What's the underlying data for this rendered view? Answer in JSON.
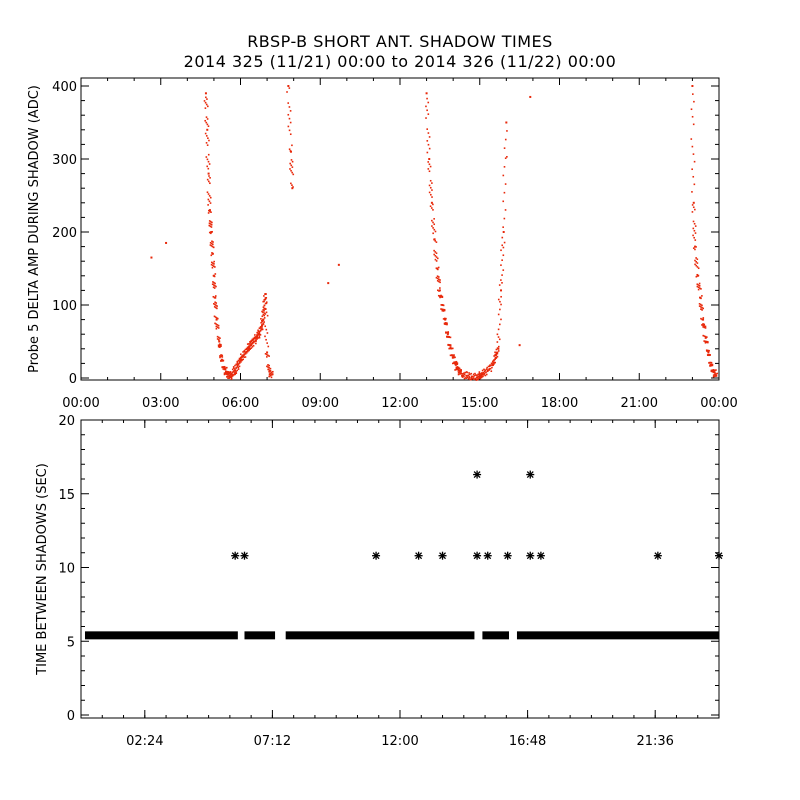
{
  "chart_data": [
    {
      "type": "scatter",
      "title": "RBSP-B SHORT ANT. SHADOW TIMES",
      "subtitle": "2014 325 (11/21) 00:00 to 2014 326 (11/22) 00:00",
      "ylabel": "Probe 5 DELTA AMP DURING SHADOW (ADC)",
      "xlabel": "",
      "xlim": [
        0,
        24
      ],
      "ylim": [
        0,
        400
      ],
      "x_tick_labels": [
        "00:00",
        "03:00",
        "06:00",
        "09:00",
        "12:00",
        "15:00",
        "18:00",
        "21:00",
        "00:00"
      ],
      "y_tick_labels": [
        "0",
        "100",
        "200",
        "300",
        "400"
      ],
      "x_unit": "hours",
      "color": "#e8290b",
      "series": [
        {
          "x": [
            2.65,
            3.2,
            4.7,
            4.75,
            4.8,
            4.85,
            4.9,
            4.95,
            5.0,
            5.05,
            5.1,
            5.2,
            5.3,
            5.4,
            5.5,
            5.6,
            5.7,
            5.8,
            5.9,
            6.0,
            6.1,
            6.2,
            6.3,
            6.4,
            6.5,
            6.6,
            6.7,
            6.8,
            6.85,
            6.9,
            6.95,
            7.0,
            7.1,
            7.2,
            7.8,
            7.9,
            7.95,
            9.3,
            9.7,
            13.0,
            13.1,
            13.2,
            13.3,
            13.4,
            13.5,
            13.6,
            13.7,
            13.8,
            13.9,
            14.0,
            14.1,
            14.2,
            14.3,
            14.5,
            14.7,
            14.9,
            15.0,
            15.1,
            15.3,
            15.5,
            15.6,
            15.7,
            15.8,
            15.9,
            16.0,
            16.5,
            16.9,
            23.0,
            23.05,
            23.1,
            23.2,
            23.3,
            23.4,
            23.5,
            23.6,
            23.7,
            23.8,
            23.9
          ],
          "y": [
            165,
            185,
            390,
            340,
            280,
            230,
            200,
            170,
            140,
            110,
            80,
            50,
            25,
            12,
            5,
            2,
            4,
            10,
            18,
            25,
            30,
            35,
            40,
            45,
            50,
            55,
            60,
            70,
            80,
            95,
            115,
            35,
            5,
            5,
            400,
            310,
            260,
            130,
            155,
            390,
            300,
            240,
            190,
            150,
            120,
            100,
            80,
            60,
            42,
            28,
            18,
            10,
            6,
            3,
            2,
            1,
            2,
            5,
            10,
            18,
            28,
            40,
            120,
            200,
            350,
            45,
            385,
            400,
            240,
            180,
            140,
            110,
            80,
            55,
            35,
            18,
            8,
            3
          ]
        }
      ]
    },
    {
      "type": "scatter",
      "title": "",
      "ylabel": "TIME BETWEEN SHADOWS (SEC)",
      "xlabel": "",
      "xlim": [
        0,
        24
      ],
      "ylim": [
        0,
        20
      ],
      "x_tick_labels": [
        "02:24",
        "07:12",
        "12:00",
        "16:48",
        "21:36"
      ],
      "x_tick_values": [
        2.4,
        7.2,
        12.0,
        16.8,
        21.6
      ],
      "y_tick_labels": [
        "0",
        "5",
        "10",
        "15",
        "20"
      ],
      "baseline_value": 5.4,
      "baseline_segments": [
        [
          0.15,
          5.9
        ],
        [
          6.15,
          7.3
        ],
        [
          7.7,
          14.8
        ],
        [
          15.1,
          16.1
        ],
        [
          16.4,
          24.0
        ]
      ],
      "series": [
        {
          "name": "",
          "x": [
            5.8,
            6.15,
            11.1,
            12.7,
            13.6,
            14.9,
            15.3,
            16.05,
            16.9,
            17.3,
            21.7,
            24.0,
            14.9,
            16.9
          ],
          "y": [
            10.8,
            10.8,
            10.8,
            10.8,
            10.8,
            10.8,
            10.8,
            10.8,
            10.8,
            10.8,
            10.8,
            10.8,
            16.3,
            16.3
          ]
        }
      ]
    }
  ]
}
